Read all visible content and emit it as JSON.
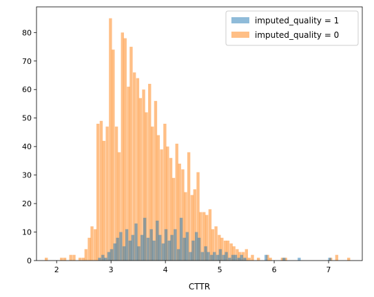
{
  "chart_data": {
    "type": "histogram",
    "title": "",
    "xlabel": "CTTR",
    "ylabel": "",
    "xlim": [
      1.63,
      7.62
    ],
    "ylim": [
      0,
      89
    ],
    "xticks": [
      2,
      3,
      4,
      5,
      6,
      7
    ],
    "yticks": [
      0,
      10,
      20,
      30,
      40,
      50,
      60,
      70,
      80
    ],
    "grid": false,
    "legend_position": "top-right",
    "bin_width": 0.0557,
    "series": [
      {
        "name": "imputed_quality = 1",
        "color": "#1f77b4",
        "alpha": 0.5,
        "bins": [
          [
            2.79,
            1
          ],
          [
            2.85,
            2
          ],
          [
            2.9,
            1
          ],
          [
            2.96,
            3
          ],
          [
            3.01,
            4
          ],
          [
            3.07,
            6
          ],
          [
            3.12,
            8
          ],
          [
            3.18,
            10
          ],
          [
            3.24,
            5
          ],
          [
            3.29,
            11
          ],
          [
            3.35,
            7
          ],
          [
            3.4,
            9
          ],
          [
            3.46,
            13
          ],
          [
            3.51,
            5
          ],
          [
            3.57,
            9
          ],
          [
            3.62,
            15
          ],
          [
            3.68,
            8
          ],
          [
            3.74,
            11
          ],
          [
            3.79,
            7
          ],
          [
            3.85,
            14
          ],
          [
            3.9,
            9
          ],
          [
            3.96,
            6
          ],
          [
            4.01,
            11
          ],
          [
            4.07,
            7
          ],
          [
            4.12,
            9
          ],
          [
            4.18,
            11
          ],
          [
            4.24,
            4
          ],
          [
            4.29,
            15
          ],
          [
            4.35,
            8
          ],
          [
            4.4,
            10
          ],
          [
            4.46,
            3
          ],
          [
            4.51,
            7
          ],
          [
            4.57,
            10
          ],
          [
            4.62,
            8
          ],
          [
            4.68,
            3
          ],
          [
            4.74,
            5
          ],
          [
            4.79,
            3
          ],
          [
            4.85,
            2
          ],
          [
            4.9,
            3
          ],
          [
            4.96,
            2
          ],
          [
            5.01,
            4
          ],
          [
            5.07,
            2
          ],
          [
            5.12,
            3
          ],
          [
            5.18,
            1
          ],
          [
            5.24,
            2
          ],
          [
            5.29,
            2
          ],
          [
            5.35,
            1
          ],
          [
            5.4,
            2
          ],
          [
            5.46,
            1
          ],
          [
            5.85,
            2
          ],
          [
            6.18,
            1
          ],
          [
            6.46,
            1
          ],
          [
            7.02,
            1
          ]
        ]
      },
      {
        "name": "imputed_quality = 0",
        "color": "#ff7f0e",
        "alpha": 0.5,
        "bins": [
          [
            1.81,
            1
          ],
          [
            2.09,
            1
          ],
          [
            2.15,
            1
          ],
          [
            2.26,
            2
          ],
          [
            2.32,
            2
          ],
          [
            2.43,
            1
          ],
          [
            2.49,
            1
          ],
          [
            2.54,
            4
          ],
          [
            2.6,
            8
          ],
          [
            2.65,
            12
          ],
          [
            2.71,
            11
          ],
          [
            2.76,
            48
          ],
          [
            2.82,
            49
          ],
          [
            2.87,
            42
          ],
          [
            2.93,
            47
          ],
          [
            2.99,
            85
          ],
          [
            3.04,
            74
          ],
          [
            3.1,
            47
          ],
          [
            3.15,
            38
          ],
          [
            3.21,
            80
          ],
          [
            3.26,
            78
          ],
          [
            3.32,
            61
          ],
          [
            3.37,
            75
          ],
          [
            3.43,
            66
          ],
          [
            3.49,
            64
          ],
          [
            3.54,
            57
          ],
          [
            3.6,
            60
          ],
          [
            3.65,
            52
          ],
          [
            3.71,
            62
          ],
          [
            3.76,
            47
          ],
          [
            3.82,
            56
          ],
          [
            3.87,
            44
          ],
          [
            3.93,
            39
          ],
          [
            3.99,
            48
          ],
          [
            4.04,
            40
          ],
          [
            4.1,
            36
          ],
          [
            4.15,
            29
          ],
          [
            4.21,
            41
          ],
          [
            4.26,
            34
          ],
          [
            4.32,
            32
          ],
          [
            4.37,
            24
          ],
          [
            4.43,
            38
          ],
          [
            4.49,
            23
          ],
          [
            4.54,
            25
          ],
          [
            4.6,
            31
          ],
          [
            4.65,
            17
          ],
          [
            4.71,
            17
          ],
          [
            4.76,
            16
          ],
          [
            4.82,
            18
          ],
          [
            4.87,
            11
          ],
          [
            4.93,
            12
          ],
          [
            4.99,
            9
          ],
          [
            5.04,
            8
          ],
          [
            5.1,
            7
          ],
          [
            5.15,
            7
          ],
          [
            5.21,
            6
          ],
          [
            5.26,
            5
          ],
          [
            5.32,
            4
          ],
          [
            5.37,
            3
          ],
          [
            5.43,
            3
          ],
          [
            5.49,
            4
          ],
          [
            5.54,
            1
          ],
          [
            5.6,
            2
          ],
          [
            5.71,
            1
          ],
          [
            5.88,
            2
          ],
          [
            5.93,
            1
          ],
          [
            6.15,
            1
          ],
          [
            6.21,
            1
          ],
          [
            7.04,
            1
          ],
          [
            7.15,
            2
          ],
          [
            7.37,
            1
          ]
        ]
      }
    ]
  }
}
